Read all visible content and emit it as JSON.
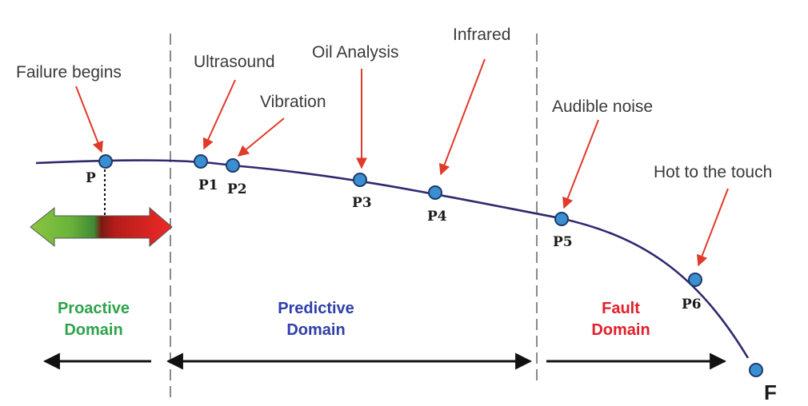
{
  "colors": {
    "curve": "#2e2a6e",
    "point_fill": "#3a8fd0",
    "annotation_arrow": "#e03a2a",
    "divider": "#8a8a8a",
    "proactive": "#2fa34a",
    "predictive": "#2f3fa8",
    "fault": "#e0202a"
  },
  "annotations": {
    "failure_begins": "Failure begins",
    "ultrasound": "Ultrasound",
    "vibration": "Vibration",
    "oil_analysis": "Oil Analysis",
    "infrared": "Infrared",
    "audible_noise": "Audible noise",
    "hot_to_touch": "Hot to the touch"
  },
  "points": {
    "p": "P",
    "p1": "P1",
    "p2": "P2",
    "p3": "P3",
    "p4": "P4",
    "p5": "P5",
    "p6": "P6",
    "f": "F"
  },
  "domains": {
    "proactive": {
      "line1": "Proactive",
      "line2": "Domain"
    },
    "predictive": {
      "line1": "Predictive",
      "line2": "Domain"
    },
    "fault": {
      "line1": "Fault",
      "line2": "Domain"
    }
  }
}
